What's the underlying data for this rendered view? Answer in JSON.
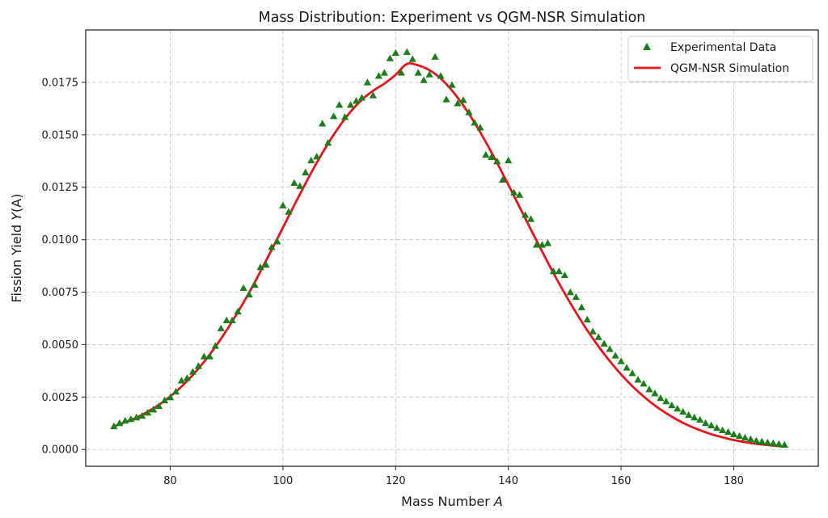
{
  "chart_data": {
    "type": "scatter+line",
    "title": "Mass Distribution: Experiment vs QGM-NSR Simulation",
    "xlabel_prefix": "Mass Number ",
    "xlabel_var": "A",
    "ylabel_prefix": "Fission Yield ",
    "ylabel_var": "Y",
    "ylabel_suffix": "(A)",
    "xlim": [
      65,
      195
    ],
    "ylim": [
      -0.0008,
      0.02
    ],
    "xticks": [
      80,
      100,
      120,
      140,
      160,
      180
    ],
    "xtick_labels": [
      "80",
      "100",
      "120",
      "140",
      "160",
      "180"
    ],
    "yticks": [
      0.0,
      0.0025,
      0.005,
      0.0075,
      0.01,
      0.0125,
      0.015,
      0.0175
    ],
    "ytick_labels": [
      "0.0000",
      "0.0025",
      "0.0050",
      "0.0075",
      "0.0100",
      "0.0125",
      "0.0150",
      "0.0175"
    ],
    "grid": true,
    "legend_position": "top-right",
    "series": [
      {
        "name": "Experimental Data",
        "kind": "scatter",
        "marker": "triangle-up",
        "color": "#1a7f1a",
        "x": [
          70,
          71,
          72,
          73,
          74,
          75,
          76,
          77,
          78,
          79,
          80,
          81,
          82,
          83,
          84,
          85,
          86,
          87,
          88,
          89,
          90,
          91,
          92,
          93,
          94,
          95,
          96,
          97,
          98,
          99,
          100,
          101,
          102,
          103,
          104,
          105,
          106,
          107,
          108,
          109,
          110,
          111,
          112,
          113,
          114,
          115,
          116,
          117,
          118,
          119,
          120,
          121,
          122,
          123,
          124,
          125,
          126,
          127,
          128,
          129,
          130,
          131,
          132,
          133,
          134,
          135,
          136,
          137,
          138,
          139,
          140,
          141,
          142,
          143,
          144,
          145,
          146,
          147,
          148,
          149,
          150,
          151,
          152,
          153,
          154,
          155,
          156,
          157,
          158,
          159,
          160,
          161,
          162,
          163,
          164,
          165,
          166,
          167,
          168,
          169,
          170,
          171,
          172,
          173,
          174,
          175,
          176,
          177,
          178,
          179,
          180,
          181,
          182,
          183,
          184,
          185,
          186,
          187,
          188,
          189
        ],
        "y": [
          0.00111,
          0.00126,
          0.00138,
          0.00145,
          0.00153,
          0.00161,
          0.00176,
          0.00191,
          0.00207,
          0.00234,
          0.00249,
          0.00276,
          0.00329,
          0.00341,
          0.00371,
          0.00398,
          0.00444,
          0.00444,
          0.00494,
          0.00578,
          0.00616,
          0.00616,
          0.00658,
          0.0077,
          0.00739,
          0.00785,
          0.00869,
          0.00881,
          0.00965,
          0.00992,
          0.01164,
          0.01133,
          0.01271,
          0.01256,
          0.01321,
          0.01378,
          0.01397,
          0.01554,
          0.01462,
          0.01589,
          0.01643,
          0.01585,
          0.01643,
          0.01662,
          0.01677,
          0.0175,
          0.01688,
          0.01781,
          0.01796,
          0.01865,
          0.01891,
          0.01796,
          0.01895,
          0.01861,
          0.01796,
          0.01761,
          0.01788,
          0.01872,
          0.01781,
          0.01669,
          0.01738,
          0.0165,
          0.01666,
          0.01608,
          0.01558,
          0.01535,
          0.01405,
          0.01394,
          0.01374,
          0.01286,
          0.01378,
          0.01225,
          0.01214,
          0.01118,
          0.01099,
          0.00976,
          0.00976,
          0.00984,
          0.0085,
          0.0085,
          0.00831,
          0.0075,
          0.00727,
          0.00678,
          0.0062,
          0.00563,
          0.00536,
          0.00505,
          0.00479,
          0.00448,
          0.00421,
          0.0039,
          0.00364,
          0.00333,
          0.00314,
          0.00287,
          0.00268,
          0.00245,
          0.0023,
          0.00211,
          0.00195,
          0.0018,
          0.00165,
          0.00153,
          0.00142,
          0.00126,
          0.00115,
          0.00103,
          0.00092,
          0.00084,
          0.00073,
          0.00065,
          0.00057,
          0.0005,
          0.00042,
          0.00038,
          0.00034,
          0.00031,
          0.00027,
          0.00023
        ]
      },
      {
        "name": "QGM-NSR Simulation",
        "kind": "line",
        "color": "#e8141a",
        "x": [
          70,
          72,
          74,
          76,
          78,
          80,
          82,
          84,
          86,
          88,
          90,
          92,
          94,
          96,
          98,
          100,
          102,
          104,
          106,
          108,
          110,
          112,
          114,
          116,
          118,
          120,
          122,
          124,
          126,
          128,
          130,
          132,
          134,
          136,
          138,
          140,
          142,
          144,
          146,
          148,
          150,
          152,
          154,
          156,
          158,
          160,
          162,
          164,
          166,
          168,
          170,
          172,
          174,
          176,
          178,
          180,
          182,
          184,
          186,
          188,
          189
        ],
        "y": [
          0.0011,
          0.0013,
          0.00152,
          0.0018,
          0.00213,
          0.00253,
          0.003,
          0.00355,
          0.00418,
          0.00489,
          0.00568,
          0.00655,
          0.00748,
          0.00848,
          0.00952,
          0.01058,
          0.01164,
          0.01268,
          0.01367,
          0.01458,
          0.0154,
          0.0161,
          0.01667,
          0.0171,
          0.01744,
          0.01786,
          0.01838,
          0.01831,
          0.01808,
          0.01768,
          0.01711,
          0.0164,
          0.01558,
          0.01465,
          0.01366,
          0.01262,
          0.01155,
          0.01048,
          0.00943,
          0.00841,
          0.00744,
          0.00653,
          0.00568,
          0.00491,
          0.00421,
          0.00358,
          0.00302,
          0.00253,
          0.0021,
          0.00173,
          0.00141,
          0.00114,
          0.00092,
          0.00073,
          0.00058,
          0.00045,
          0.00035,
          0.00027,
          0.00021,
          0.00016,
          0.00014
        ]
      }
    ]
  }
}
